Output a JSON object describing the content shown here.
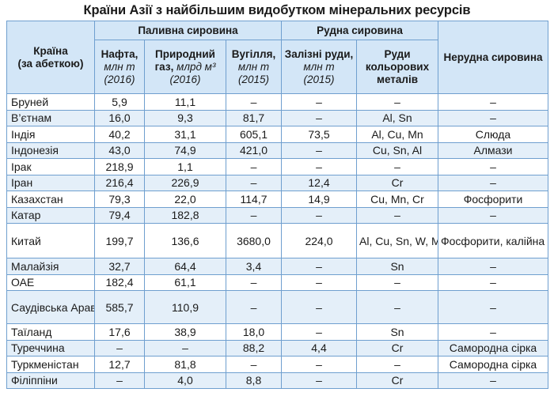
{
  "title": "Країни Азії з найбільшим видобутком мінеральних ресурсів",
  "headers": {
    "country": "Країна",
    "country_note": "(за абеткою)",
    "fuel_group": "Паливна сировина",
    "ore_group": "Рудна сировина",
    "nonmetal": "Нерудна сировина",
    "oil": "Нафта,",
    "oil_unit": "млн т",
    "oil_year": "(2016)",
    "gas": "Природний газ,",
    "gas_unit": "млрд м³",
    "gas_year": "(2016)",
    "coal": "Вугілля,",
    "coal_unit": "млн т",
    "coal_year": "(2015)",
    "iron": "Залізні руди,",
    "iron_unit": "млн т",
    "iron_year": "(2015)",
    "nonferrous": "Руди кольорових металів"
  },
  "rows": [
    {
      "country": "Бруней",
      "oil": "5,9",
      "gas": "11,1",
      "coal": "–",
      "iron": "–",
      "nonferrous": "–",
      "nonmetal": "–"
    },
    {
      "country": "В’єтнам",
      "oil": "16,0",
      "gas": "9,3",
      "coal": "81,7",
      "iron": "–",
      "nonferrous": "Al, Sn",
      "nonmetal": "–"
    },
    {
      "country": "Індія",
      "oil": "40,2",
      "gas": "31,1",
      "coal": "605,1",
      "iron": "73,5",
      "nonferrous": "Al, Cu, Mn",
      "nonmetal": "Слюда"
    },
    {
      "country": "Індонезія",
      "oil": "43,0",
      "gas": "74,9",
      "coal": "421,0",
      "iron": "–",
      "nonferrous": "Cu, Sn, Al",
      "nonmetal": "Алмази"
    },
    {
      "country": "Ірак",
      "oil": "218,9",
      "gas": "1,1",
      "coal": "–",
      "iron": "–",
      "nonferrous": "–",
      "nonmetal": "–"
    },
    {
      "country": "Іран",
      "oil": "216,4",
      "gas": "226,9",
      "coal": "–",
      "iron": "12,4",
      "nonferrous": "Cr",
      "nonmetal": "–"
    },
    {
      "country": "Казахстан",
      "oil": "79,3",
      "gas": "22,0",
      "coal": "114,7",
      "iron": "14,9",
      "nonferrous": "Cu, Mn, Cr",
      "nonmetal": "Фосфорити"
    },
    {
      "country": "Катар",
      "oil": "79,4",
      "gas": "182,8",
      "coal": "–",
      "iron": "–",
      "nonferrous": "–",
      "nonmetal": "–"
    },
    {
      "country": "Китай",
      "oil": "199,7",
      "gas": "136,6",
      "coal": "3680,0",
      "iron": "224,0",
      "nonferrous": "Al, Cu, Sn, W, Mn",
      "nonmetal": "Фосфорити, калійна сіль"
    },
    {
      "country": "Малайзія",
      "oil": "32,7",
      "gas": "64,4",
      "coal": "3,4",
      "iron": "–",
      "nonferrous": "Sn",
      "nonmetal": "–"
    },
    {
      "country": "ОАЕ",
      "oil": "182,4",
      "gas": "61,1",
      "coal": "–",
      "iron": "–",
      "nonferrous": "–",
      "nonmetal": "–"
    },
    {
      "country": "Саудівська Аравія",
      "oil": "585,7",
      "gas": "110,9",
      "coal": "–",
      "iron": "–",
      "nonferrous": "–",
      "nonmetal": "–"
    },
    {
      "country": "Таїланд",
      "oil": "17,6",
      "gas": "38,9",
      "coal": "18,0",
      "iron": "–",
      "nonferrous": "Sn",
      "nonmetal": "–"
    },
    {
      "country": "Туреччина",
      "oil": "–",
      "gas": "–",
      "coal": "88,2",
      "iron": "4,4",
      "nonferrous": "Cr",
      "nonmetal": "Самородна сірка"
    },
    {
      "country": "Туркменістан",
      "oil": "12,7",
      "gas": "81,8",
      "coal": "–",
      "iron": "–",
      "nonferrous": "–",
      "nonmetal": "Самородна сірка"
    },
    {
      "country": "Філіппіни",
      "oil": "–",
      "gas": "4,0",
      "coal": "8,8",
      "iron": "–",
      "nonferrous": "Cr",
      "nonmetal": "–"
    }
  ]
}
